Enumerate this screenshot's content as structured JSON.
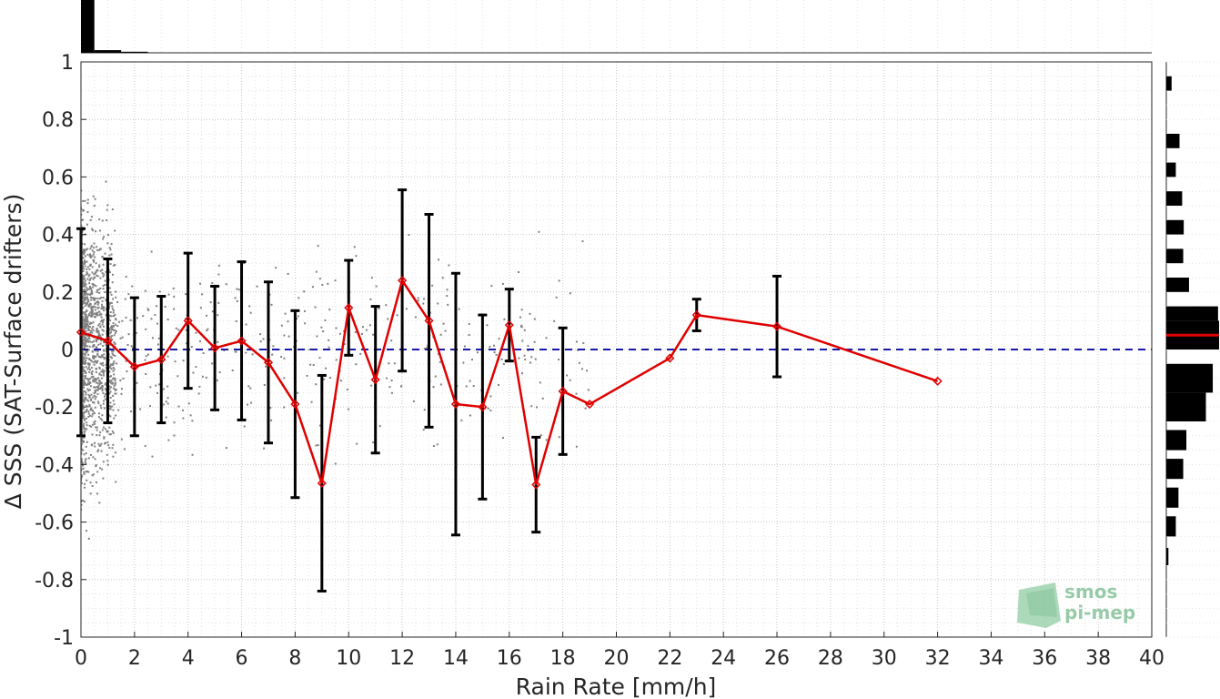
{
  "chart_data": {
    "type": "scatter",
    "xlabel": "Rain Rate [mm/h]",
    "ylabel": "Δ SSS (SAT-Surface drifters)",
    "xlim": [
      0,
      40
    ],
    "ylim": [
      -1,
      1
    ],
    "xticks": [
      "0",
      "2",
      "4",
      "6",
      "8",
      "10",
      "12",
      "14",
      "16",
      "18",
      "20",
      "22",
      "24",
      "26",
      "28",
      "30",
      "32",
      "34",
      "36",
      "38",
      "40"
    ],
    "yticks": [
      "-1",
      "-0.8",
      "-0.6",
      "-0.4",
      "-0.2",
      "0",
      "0.2",
      "0.4",
      "0.6",
      "0.8",
      "1"
    ],
    "grid": true,
    "zero_line": {
      "y": 0,
      "color": "#1a1aa6",
      "style": "dashed"
    },
    "scatter_color": "#808080",
    "mean_series": {
      "color": "#e00000",
      "points": [
        {
          "x": 0,
          "y": 0.06,
          "err": 0.36
        },
        {
          "x": 1,
          "y": 0.03,
          "err": 0.285
        },
        {
          "x": 2,
          "y": -0.06,
          "err": 0.24
        },
        {
          "x": 3,
          "y": -0.035,
          "err": 0.22
        },
        {
          "x": 4,
          "y": 0.1,
          "err": 0.235
        },
        {
          "x": 5,
          "y": 0.005,
          "err": 0.215
        },
        {
          "x": 6,
          "y": 0.03,
          "err": 0.275
        },
        {
          "x": 7,
          "y": -0.045,
          "err": 0.28
        },
        {
          "x": 8,
          "y": -0.19,
          "err": 0.325
        },
        {
          "x": 9,
          "y": -0.465,
          "err": 0.375
        },
        {
          "x": 10,
          "y": 0.145,
          "err": 0.165
        },
        {
          "x": 11,
          "y": -0.105,
          "err": 0.255
        },
        {
          "x": 12,
          "y": 0.24,
          "err": 0.315
        },
        {
          "x": 13,
          "y": 0.1,
          "err": 0.37
        },
        {
          "x": 14,
          "y": -0.19,
          "err": 0.455
        },
        {
          "x": 15,
          "y": -0.2,
          "err": 0.32
        },
        {
          "x": 16,
          "y": 0.085,
          "err": 0.125
        },
        {
          "x": 17,
          "y": -0.47,
          "err": 0.165
        },
        {
          "x": 18,
          "y": -0.145,
          "err": 0.22
        },
        {
          "x": 19,
          "y": -0.19,
          "err": 0
        },
        {
          "x": 22,
          "y": -0.03,
          "err": 0
        },
        {
          "x": 23,
          "y": 0.12,
          "err": 0.055
        },
        {
          "x": 26,
          "y": 0.08,
          "err": 0.175
        },
        {
          "x": 32,
          "y": -0.11,
          "err": 0
        }
      ]
    },
    "top_histogram": {
      "color": "#000000",
      "bins": [
        {
          "x0": 0,
          "x1": 0.5,
          "count": 1.0
        },
        {
          "x0": 0.5,
          "x1": 1.5,
          "count": 0.05
        },
        {
          "x0": 1.5,
          "x1": 2.5,
          "count": 0.02
        }
      ]
    },
    "right_histogram": {
      "color": "#000000",
      "mean_marker": {
        "y": 0.05,
        "color": "#e00000"
      },
      "bins": [
        {
          "y0": 0.9,
          "y1": 0.95,
          "count": 0.1
        },
        {
          "y0": 0.7,
          "y1": 0.75,
          "count": 0.25
        },
        {
          "y0": 0.6,
          "y1": 0.65,
          "count": 0.18
        },
        {
          "y0": 0.5,
          "y1": 0.55,
          "count": 0.3
        },
        {
          "y0": 0.4,
          "y1": 0.45,
          "count": 0.33
        },
        {
          "y0": 0.3,
          "y1": 0.35,
          "count": 0.32
        },
        {
          "y0": 0.2,
          "y1": 0.25,
          "count": 0.43
        },
        {
          "y0": 0.1,
          "y1": 0.15,
          "count": 0.98
        },
        {
          "y0": 0.0,
          "y1": 0.1,
          "count": 1.0
        },
        {
          "y0": -0.15,
          "y1": -0.05,
          "count": 0.88
        },
        {
          "y0": -0.25,
          "y1": -0.15,
          "count": 0.75
        },
        {
          "y0": -0.35,
          "y1": -0.28,
          "count": 0.38
        },
        {
          "y0": -0.45,
          "y1": -0.38,
          "count": 0.32
        },
        {
          "y0": -0.55,
          "y1": -0.48,
          "count": 0.23
        },
        {
          "y0": -0.65,
          "y1": -0.58,
          "count": 0.18
        },
        {
          "y0": -0.75,
          "y1": -0.69,
          "count": 0.04
        }
      ]
    }
  },
  "logo": {
    "line1": "smos",
    "line2": "pi-mep",
    "color": "#86c29a"
  }
}
